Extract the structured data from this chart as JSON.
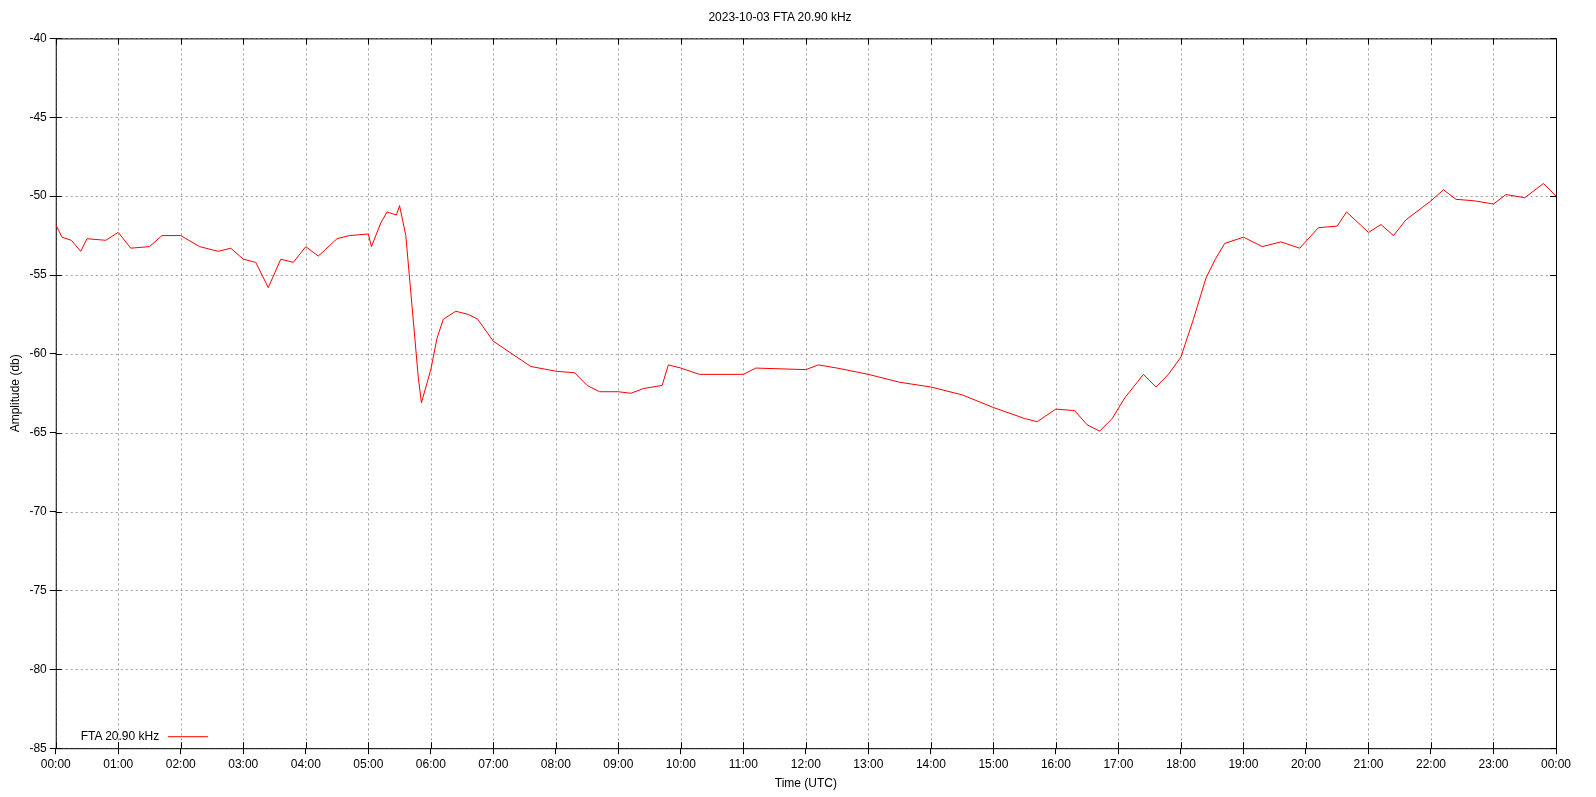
{
  "chart_data": {
    "type": "line",
    "title": "2023-10-03 FTA 20.90 kHz",
    "xlabel": "Time (UTC)",
    "ylabel": "Amplitude (db)",
    "xlim": [
      0,
      24
    ],
    "xticks": [
      {
        "value": 0,
        "label": "00:00"
      },
      {
        "value": 1,
        "label": "01:00"
      },
      {
        "value": 2,
        "label": "02:00"
      },
      {
        "value": 3,
        "label": "03:00"
      },
      {
        "value": 4,
        "label": "04:00"
      },
      {
        "value": 5,
        "label": "05:00"
      },
      {
        "value": 6,
        "label": "06:00"
      },
      {
        "value": 7,
        "label": "07:00"
      },
      {
        "value": 8,
        "label": "08:00"
      },
      {
        "value": 9,
        "label": "09:00"
      },
      {
        "value": 10,
        "label": "10:00"
      },
      {
        "value": 11,
        "label": "11:00"
      },
      {
        "value": 12,
        "label": "12:00"
      },
      {
        "value": 13,
        "label": "13:00"
      },
      {
        "value": 14,
        "label": "14:00"
      },
      {
        "value": 15,
        "label": "15:00"
      },
      {
        "value": 16,
        "label": "16:00"
      },
      {
        "value": 17,
        "label": "17:00"
      },
      {
        "value": 18,
        "label": "18:00"
      },
      {
        "value": 19,
        "label": "19:00"
      },
      {
        "value": 20,
        "label": "20:00"
      },
      {
        "value": 21,
        "label": "21:00"
      },
      {
        "value": 22,
        "label": "22:00"
      },
      {
        "value": 23,
        "label": "23:00"
      },
      {
        "value": 24,
        "label": "00:00"
      }
    ],
    "ylim": [
      -85,
      -40
    ],
    "yticks": [
      -85,
      -80,
      -75,
      -70,
      -65,
      -60,
      -55,
      -50,
      -45,
      -40
    ],
    "grid": true,
    "legend": "bottom left",
    "marker": "none",
    "line_style": "solid",
    "x": [
      0,
      0.1,
      0.25,
      0.4,
      0.5,
      0.8,
      1.0,
      1.2,
      1.5,
      1.7,
      2.0,
      2.3,
      2.6,
      2.8,
      3.0,
      3.2,
      3.4,
      3.6,
      3.8,
      4.0,
      4.2,
      4.5,
      4.7,
      5.0,
      5.05,
      5.2,
      5.3,
      5.45,
      5.5,
      5.6,
      5.7,
      5.8,
      5.85,
      6.0,
      6.1,
      6.2,
      6.4,
      6.6,
      6.75,
      7.0,
      7.3,
      7.6,
      8.0,
      8.3,
      8.5,
      8.7,
      9.0,
      9.2,
      9.4,
      9.7,
      9.8,
      10.0,
      10.3,
      11.0,
      11.2,
      12.0,
      12.2,
      12.5,
      13.0,
      13.5,
      14.0,
      14.5,
      15.0,
      15.5,
      15.7,
      16.0,
      16.3,
      16.5,
      16.7,
      16.9,
      17.1,
      17.3,
      17.4,
      17.6,
      17.8,
      18.0,
      18.2,
      18.4,
      18.55,
      18.7,
      19.0,
      19.3,
      19.6,
      19.9,
      20.2,
      20.5,
      20.65,
      21.0,
      21.2,
      21.4,
      21.6,
      22.0,
      22.2,
      22.4,
      22.7,
      23.0,
      23.2,
      23.5,
      23.8,
      24.0
    ],
    "series": [
      {
        "name": "FTA 20.90 kHz",
        "color": "#ff0000",
        "values": [
          -51.8,
          -52.6,
          -52.8,
          -53.5,
          -52.7,
          -52.8,
          -52.3,
          -53.3,
          -53.2,
          -52.5,
          -52.5,
          -53.2,
          -53.5,
          -53.3,
          -54,
          -54.2,
          -55.8,
          -54,
          -54.2,
          -53.2,
          -53.8,
          -52.7,
          -52.5,
          -52.4,
          -53.2,
          -51.7,
          -51,
          -51.2,
          -50.6,
          -52.5,
          -57,
          -61.5,
          -63.1,
          -61,
          -59,
          -57.8,
          -57.3,
          -57.5,
          -57.8,
          -59.2,
          -60,
          -60.8,
          -61.1,
          -61.2,
          -62,
          -62.4,
          -62.4,
          -62.5,
          -62.2,
          -62,
          -60.7,
          -60.9,
          -61.3,
          -61.3,
          -60.9,
          -61,
          -60.7,
          -60.9,
          -61.3,
          -61.8,
          -62.1,
          -62.6,
          -63.4,
          -64.1,
          -64.3,
          -63.5,
          -63.6,
          -64.5,
          -64.9,
          -64.1,
          -62.8,
          -61.8,
          -61.3,
          -62.1,
          -61.3,
          -60.2,
          -57.8,
          -55.2,
          -54,
          -53,
          -52.6,
          -53.2,
          -52.9,
          -53.3,
          -52,
          -51.9,
          -51,
          -52.3,
          -51.8,
          -52.5,
          -51.5,
          -50.3,
          -49.6,
          -50.2,
          -50.3,
          -50.5,
          -49.9,
          -50.1,
          -49.2,
          -50
        ]
      }
    ]
  }
}
